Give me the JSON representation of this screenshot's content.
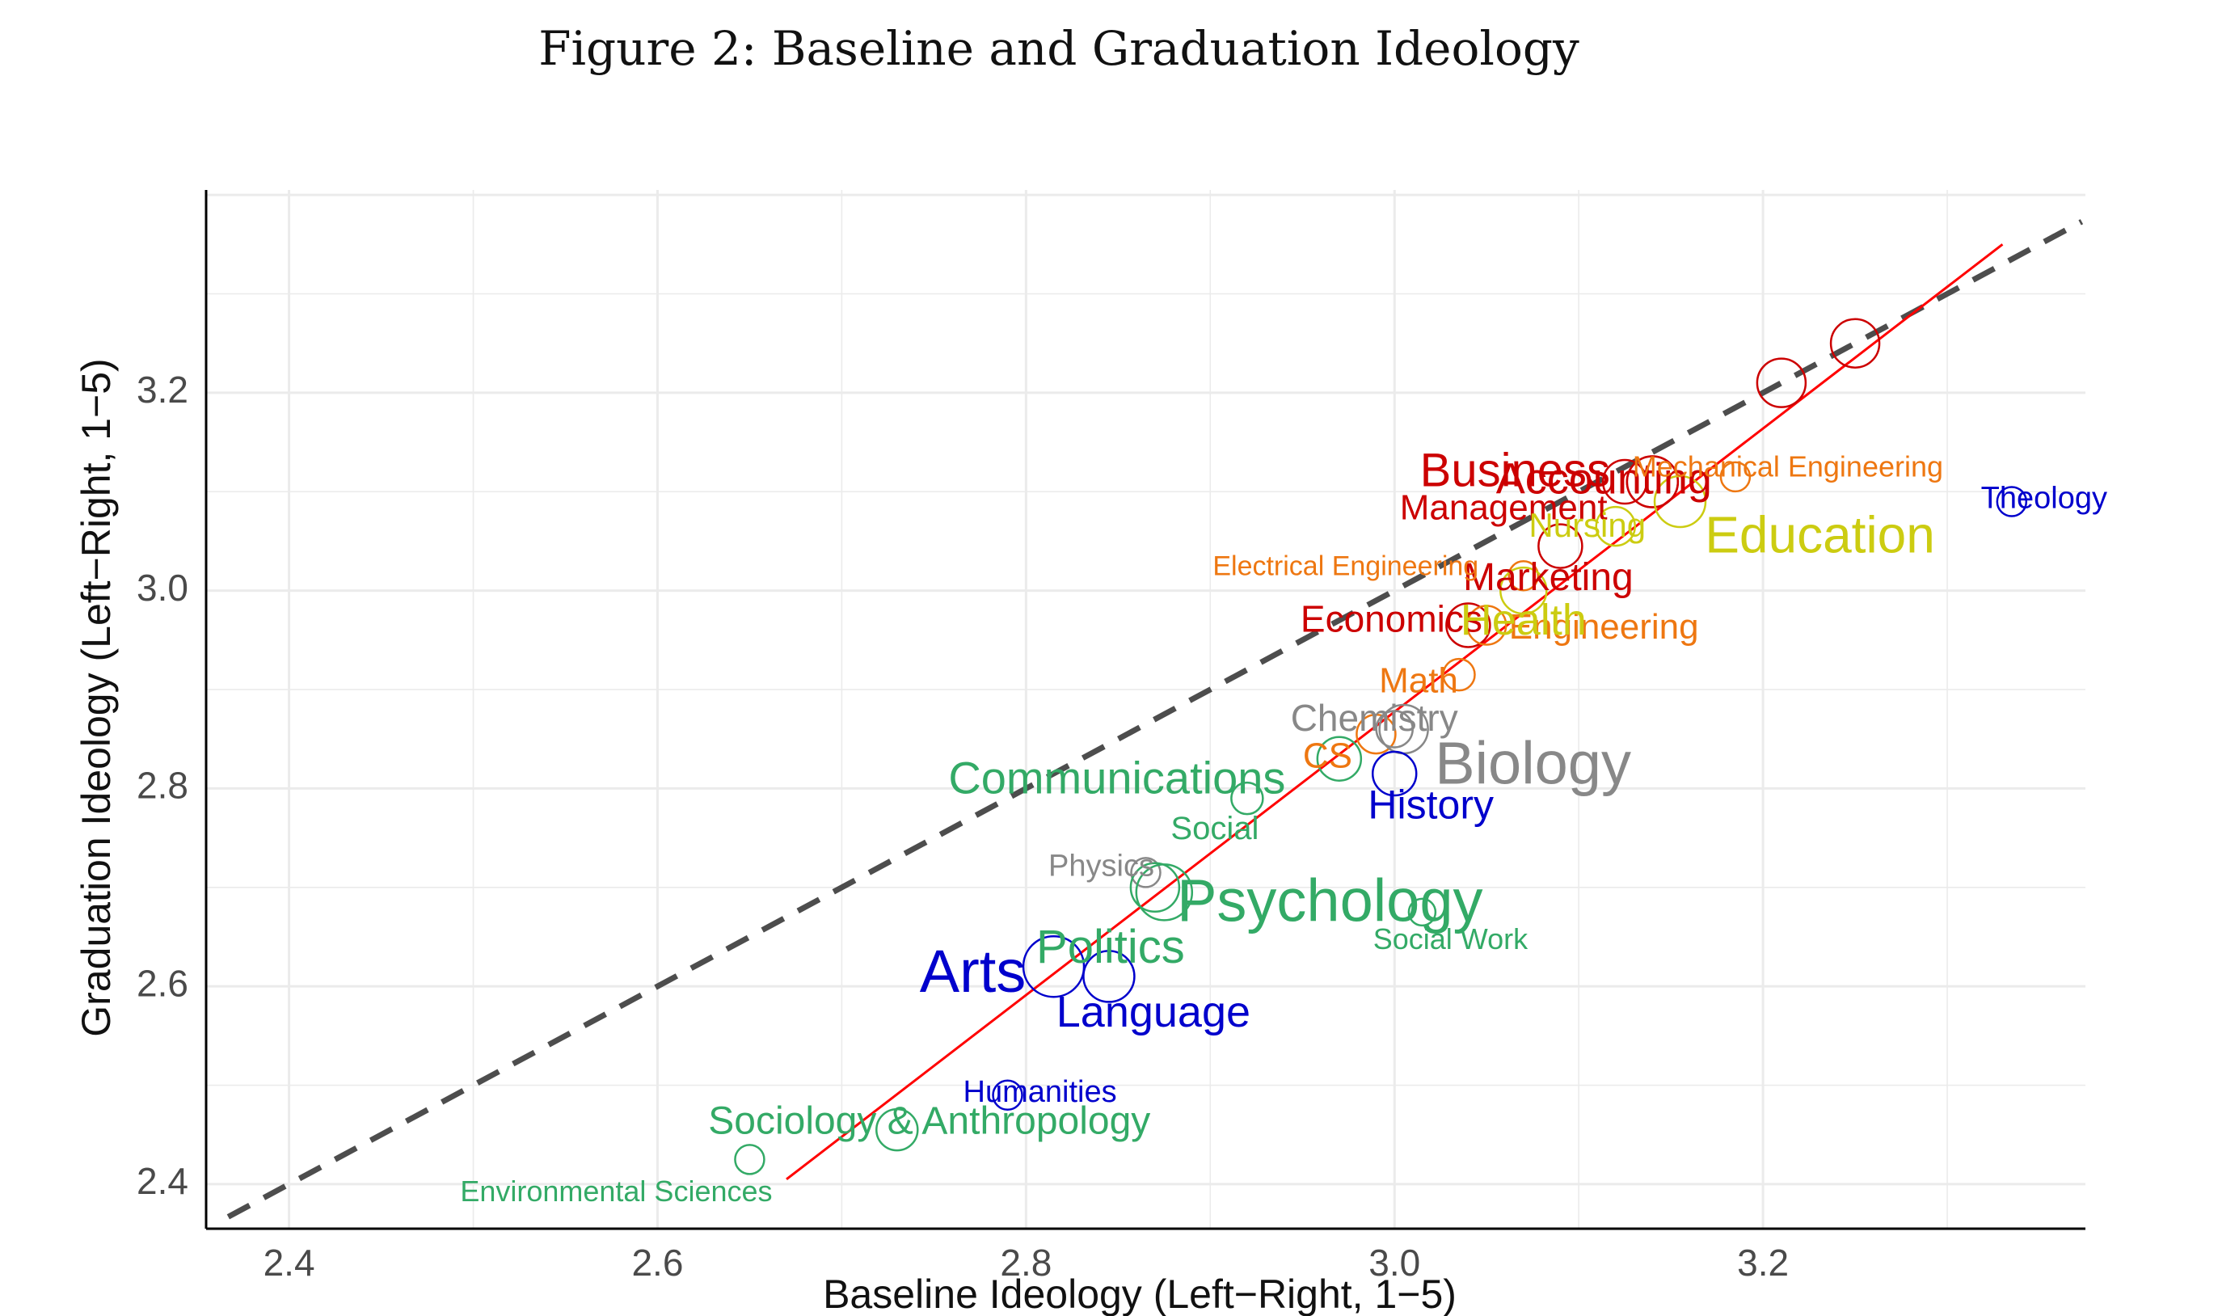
{
  "figure": {
    "title": "Figure 2: Baseline and Graduation Ideology"
  },
  "chart_data": {
    "type": "scatter",
    "xlabel": "Baseline Ideology (Left−Right, 1−5)",
    "ylabel": "Graduation Ideology (Left−Right, 1−5)",
    "xlim": [
      2.355,
      3.375
    ],
    "ylim": [
      2.355,
      3.405
    ],
    "x_ticks": [
      {
        "value": 2.4,
        "label": "2.4"
      },
      {
        "value": 2.6,
        "label": "2.6"
      },
      {
        "value": 2.8,
        "label": "2.8"
      },
      {
        "value": 3.0,
        "label": "3.0"
      },
      {
        "value": 3.2,
        "label": "3.2"
      }
    ],
    "y_ticks": [
      {
        "value": 2.4,
        "label": "2.4"
      },
      {
        "value": 2.6,
        "label": "2.6"
      },
      {
        "value": 2.8,
        "label": "2.8"
      },
      {
        "value": 3.0,
        "label": "3.0"
      },
      {
        "value": 3.2,
        "label": "3.2"
      }
    ],
    "grid": true,
    "reference_line": {
      "type": "45-degree",
      "style": "dashed",
      "color": "#4d4d4d"
    },
    "fit_line": {
      "color": "#ff0000",
      "x": [
        2.67,
        3.33
      ],
      "y": [
        2.405,
        3.35
      ]
    },
    "palette": {
      "red": "#cc0000",
      "orange": "#ee7711",
      "yellow": "#cccc11",
      "gray": "#888888",
      "green": "#33aa66",
      "blue": "#0000cc"
    },
    "points": [
      {
        "label": "",
        "x": 3.25,
        "y": 3.25,
        "r": 2.0,
        "color": "red"
      },
      {
        "label": "",
        "x": 3.21,
        "y": 3.21,
        "r": 2.0,
        "color": "red"
      },
      {
        "label": "Accounting",
        "x": 3.14,
        "y": 3.11,
        "r": 2.1,
        "color": "red"
      },
      {
        "label": "Business",
        "x": 3.14,
        "y": 3.11,
        "r": 2.1,
        "color": "red"
      },
      {
        "label": "Management",
        "x": 3.125,
        "y": 3.11,
        "r": 1.8,
        "color": "red"
      },
      {
        "label": "Marketing",
        "x": 3.09,
        "y": 3.045,
        "r": 1.8,
        "color": "red"
      },
      {
        "label": "Economics",
        "x": 3.04,
        "y": 2.965,
        "r": 1.8,
        "color": "red"
      },
      {
        "label": "Mechanical Engineering",
        "x": 3.185,
        "y": 3.115,
        "r": 1.2,
        "color": "orange"
      },
      {
        "label": "Electrical Engineering",
        "x": 3.07,
        "y": 3.015,
        "r": 1.2,
        "color": "orange"
      },
      {
        "label": "Math",
        "x": 3.035,
        "y": 2.915,
        "r": 1.3,
        "color": "orange"
      },
      {
        "label": "Engineering",
        "x": 3.05,
        "y": 2.965,
        "r": 1.6,
        "color": "orange"
      },
      {
        "label": "CS",
        "x": 2.99,
        "y": 2.855,
        "r": 1.6,
        "color": "orange"
      },
      {
        "label": "Education",
        "x": 3.155,
        "y": 3.09,
        "r": 2.1,
        "color": "yellow"
      },
      {
        "label": "Nursing",
        "x": 3.12,
        "y": 3.065,
        "r": 1.6,
        "color": "yellow"
      },
      {
        "label": "Health",
        "x": 3.07,
        "y": 3.0,
        "r": 1.9,
        "color": "yellow"
      },
      {
        "label": "Chemistry",
        "x": 3.0,
        "y": 2.86,
        "r": 1.5,
        "color": "gray"
      },
      {
        "label": "Biology",
        "x": 3.005,
        "y": 2.86,
        "r": 2.0,
        "color": "gray"
      },
      {
        "label": "Physics",
        "x": 2.865,
        "y": 2.715,
        "r": 1.2,
        "color": "gray"
      },
      {
        "label": "Communications",
        "x": 2.97,
        "y": 2.83,
        "r": 1.8,
        "color": "green"
      },
      {
        "label": "Social",
        "x": 2.92,
        "y": 2.79,
        "r": 1.3,
        "color": "green"
      },
      {
        "label": "Psychology",
        "x": 2.875,
        "y": 2.695,
        "r": 2.3,
        "color": "green"
      },
      {
        "label": "Politics",
        "x": 2.87,
        "y": 2.7,
        "r": 2.0,
        "color": "green"
      },
      {
        "label": "Social Work",
        "x": 3.015,
        "y": 2.675,
        "r": 1.1,
        "color": "green"
      },
      {
        "label": "Sociology & Anthropology",
        "x": 2.73,
        "y": 2.455,
        "r": 1.7,
        "color": "green"
      },
      {
        "label": "Environmental Sciences",
        "x": 2.65,
        "y": 2.425,
        "r": 1.2,
        "color": "green"
      },
      {
        "label": "Theology",
        "x": 3.335,
        "y": 3.09,
        "r": 1.2,
        "color": "blue"
      },
      {
        "label": "History",
        "x": 3.0,
        "y": 2.815,
        "r": 1.8,
        "color": "blue"
      },
      {
        "label": "Arts",
        "x": 2.815,
        "y": 2.62,
        "r": 2.5,
        "color": "blue"
      },
      {
        "label": "Language",
        "x": 2.845,
        "y": 2.61,
        "r": 2.1,
        "color": "blue"
      },
      {
        "label": "Humanities",
        "x": 2.79,
        "y": 2.49,
        "r": 1.2,
        "color": "blue"
      }
    ]
  }
}
